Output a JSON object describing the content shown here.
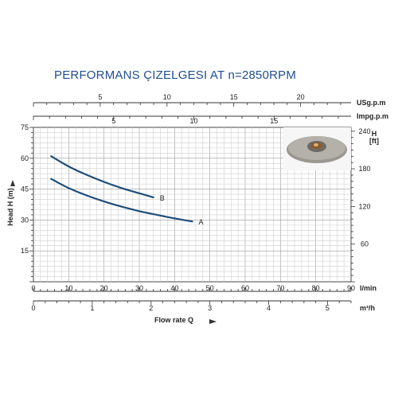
{
  "title": "PERFORMANS ÇIZELGESI  AT n=2850RPM",
  "chart_data": {
    "type": "line",
    "x_lmin": {
      "unit": "l/min",
      "range": [
        0,
        90
      ],
      "ticks": [
        0,
        10,
        20,
        30,
        40,
        50,
        60,
        70,
        80,
        90
      ]
    },
    "x_m3h": {
      "unit": "m³/h",
      "range": [
        0,
        5.4
      ],
      "ticks": [
        0,
        1,
        2,
        3,
        4,
        5
      ]
    },
    "x_usgpm": {
      "unit": "USg.p.m",
      "range": [
        0,
        23.78
      ],
      "ticks": [
        5,
        10,
        15,
        20
      ]
    },
    "x_impgpm": {
      "unit": "Impg.p.m",
      "range": [
        0,
        19.8
      ],
      "ticks": [
        5,
        10,
        15
      ]
    },
    "y_head_m": {
      "label": "Head H (m)",
      "range": [
        0,
        75
      ],
      "ticks": [
        15,
        30,
        45,
        60,
        75
      ]
    },
    "y_head_ft": {
      "label": "H [ft]",
      "range": [
        0,
        240
      ],
      "ticks": [
        60,
        120,
        180,
        240
      ]
    },
    "xlabel": "Flow rate Q",
    "grid": true,
    "series": [
      {
        "name": "A",
        "x": [
          5,
          10,
          15,
          20,
          25,
          30,
          35,
          40,
          45
        ],
        "y": [
          50,
          45.5,
          42,
          39,
          36.5,
          34.3,
          32.5,
          30.8,
          29.3
        ]
      },
      {
        "name": "B",
        "x": [
          5,
          10,
          15,
          20,
          25,
          30,
          34
        ],
        "y": [
          61,
          56,
          52,
          48.5,
          45.5,
          43,
          41
        ]
      }
    ]
  }
}
